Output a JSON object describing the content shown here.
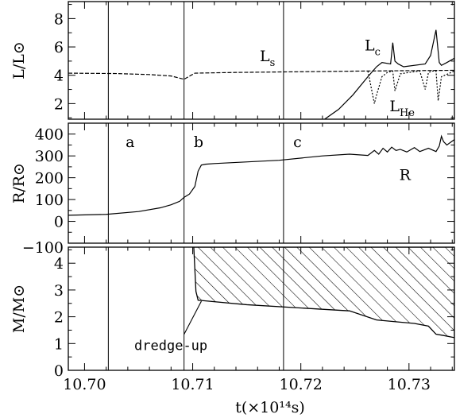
{
  "chart_data": {
    "type": "line",
    "x_axis": {
      "label": "t(×10¹⁴s)",
      "range": [
        10.6985,
        10.7342
      ],
      "ticks": [
        10.7,
        10.71,
        10.72,
        10.73
      ],
      "tick_labels": [
        "10.70",
        "10.71",
        "10.72",
        "10.73"
      ]
    },
    "vertical_lines_x": [
      10.7022,
      10.7092,
      10.7184
    ],
    "panels": [
      {
        "id": "luminosity",
        "ylabel": "L/L⊙",
        "ylim": [
          0.9,
          9.2
        ],
        "yticks": [
          2,
          4,
          6,
          8
        ],
        "ytick_labels": [
          "2",
          "4",
          "6",
          "8"
        ],
        "series": [
          {
            "name": "Ls",
            "style": "dashed",
            "x": [
              10.6985,
              10.703,
              10.706,
              10.708,
              10.7092,
              10.7102,
              10.714,
              10.72,
              10.726,
              10.7342
            ],
            "y": [
              4.15,
              4.12,
              4.05,
              3.95,
              3.72,
              4.15,
              4.2,
              4.25,
              4.3,
              4.35
            ]
          },
          {
            "name": "Lc",
            "style": "solid",
            "x": [
              10.7222,
              10.7235,
              10.7248,
              10.7262,
              10.727,
              10.7275,
              10.7283,
              10.7285,
              10.7287,
              10.729,
              10.7295,
              10.7315,
              10.732,
              10.7325,
              10.7328,
              10.733,
              10.7335,
              10.7342
            ],
            "y": [
              0.9,
              1.6,
              2.6,
              3.9,
              4.6,
              4.9,
              4.8,
              6.3,
              5.0,
              4.8,
              4.6,
              4.8,
              5.4,
              7.2,
              4.9,
              4.7,
              4.9,
              5.2
            ]
          },
          {
            "name": "LHe",
            "style": "dotted",
            "x": [
              10.7262,
              10.7268,
              10.727,
              10.7275,
              10.728,
              10.7285,
              10.7287,
              10.7292,
              10.73,
              10.731,
              10.7315,
              10.7318,
              10.7322,
              10.7325,
              10.7327,
              10.733,
              10.7342
            ],
            "y": [
              4.3,
              2.0,
              2.6,
              3.9,
              4.2,
              4.3,
              2.9,
              4.1,
              4.2,
              4.3,
              3.0,
              4.2,
              4.3,
              4.3,
              2.2,
              3.9,
              4.3
            ]
          }
        ],
        "annotations": [
          {
            "text": "L",
            "sub": "s",
            "x": 10.7162,
            "y": 5.0
          },
          {
            "text": "L",
            "sub": "c",
            "x": 10.7259,
            "y": 5.75
          },
          {
            "text": "L",
            "sub": "He",
            "x": 10.7282,
            "y": 1.45
          }
        ]
      },
      {
        "id": "radius",
        "ylabel": "R/R⊙",
        "ylim": [
          -100,
          450
        ],
        "yticks": [
          -100,
          0,
          100,
          200,
          300,
          400
        ],
        "ytick_labels": [
          "−100",
          "0",
          "100",
          "200",
          "300",
          "400"
        ],
        "series": [
          {
            "name": "",
            "style": "solid",
            "x": [
              10.6985,
              10.702,
              10.705,
              10.707,
              10.708,
              10.7088,
              10.7092,
              10.7097,
              10.7102,
              10.7105,
              10.7108,
              10.7112,
              10.712,
              10.718,
              10.722,
              10.7245,
              10.7262,
              10.7268,
              10.7272,
              10.7276,
              10.728,
              10.7284,
              10.7288,
              10.7292,
              10.7298,
              10.7305,
              10.731,
              10.7318,
              10.7325,
              10.7328,
              10.733,
              10.7332,
              10.7335,
              10.7342
            ],
            "y": [
              28,
              32,
              45,
              62,
              76,
              92,
              110,
              125,
              160,
              230,
              258,
              262,
              265,
              280,
              300,
              308,
              302,
              325,
              308,
              335,
              318,
              340,
              325,
              330,
              318,
              338,
              320,
              335,
              320,
              345,
              390,
              365,
              350,
              375
            ]
          }
        ],
        "annotations": [
          {
            "text": "a",
            "x": 10.7038,
            "y": 340
          },
          {
            "text": "b",
            "x": 10.7101,
            "y": 340
          },
          {
            "text": "c",
            "x": 10.7193,
            "y": 340
          },
          {
            "text": "R",
            "x": 10.7291,
            "y": 190
          }
        ]
      },
      {
        "id": "mass",
        "ylabel": "M/M⊙",
        "ylim": [
          0,
          4.6
        ],
        "yticks": [
          0,
          1,
          2,
          3,
          4
        ],
        "ytick_labels": [
          "0",
          "1",
          "2",
          "3",
          "4"
        ],
        "series": [
          {
            "name": "",
            "style": "hatched-region",
            "x": [
              10.7101,
              10.7103,
              10.7105,
              10.711,
              10.715,
              10.722,
              10.7245,
              10.727,
              10.7305,
              10.7318,
              10.7325,
              10.7332,
              10.7342
            ],
            "y_bottom": [
              4.6,
              2.95,
              2.62,
              2.6,
              2.45,
              2.28,
              2.22,
              1.88,
              1.75,
              1.65,
              1.35,
              1.3,
              1.22
            ],
            "y_top": 4.6
          }
        ],
        "annotations": [
          {
            "text": "dredge-up",
            "x": 10.7046,
            "y": 0.75,
            "arrow_to": [
              10.7108,
              2.58
            ]
          }
        ]
      }
    ]
  }
}
